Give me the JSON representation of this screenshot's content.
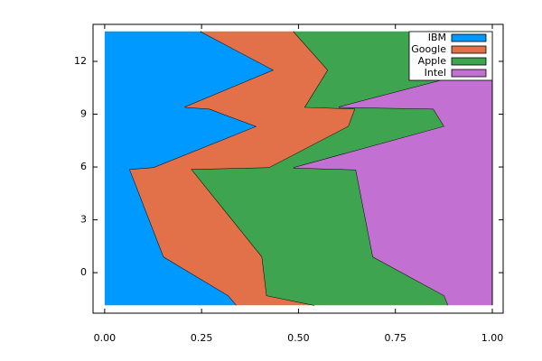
{
  "chart_data": {
    "type": "stacked-area",
    "orientation": "horizontal",
    "y": [
      13.7,
      11.5,
      9.4,
      9.3,
      8.3,
      5.95,
      5.85,
      0.9,
      -1.3,
      -1.85
    ],
    "series": [
      {
        "name": "IBM",
        "color": "#0099ff",
        "values": [
          0.247,
          0.436,
          0.207,
          0.27,
          0.392,
          0.126,
          0.065,
          0.152,
          0.319,
          0.34
        ]
      },
      {
        "name": "Google",
        "color": "#e2714a",
        "values": [
          0.24,
          0.14,
          0.31,
          0.376,
          0.237,
          0.298,
          0.16,
          0.254,
          0.099,
          0.201
        ]
      },
      {
        "name": "Apple",
        "color": "#3fa44f",
        "values": [
          0.513,
          0.394,
          0.087,
          0.202,
          0.247,
          0.063,
          0.423,
          0.286,
          0.458,
          0.345
        ]
      },
      {
        "name": "Intel",
        "color": "#c271d2",
        "values": [
          0,
          0.03,
          0.396,
          0.152,
          0.124,
          0.513,
          0.352,
          0.308,
          0.124,
          0.114
        ]
      }
    ],
    "xlim": [
      -0.03,
      1.028
    ],
    "ylim": [
      -2.3,
      14.1
    ],
    "xticks": [
      {
        "value": 0,
        "label": "0.00"
      },
      {
        "value": 0.25,
        "label": "0.25"
      },
      {
        "value": 0.5,
        "label": "0.50"
      },
      {
        "value": 0.75,
        "label": "0.75"
      },
      {
        "value": 1,
        "label": "1.00"
      }
    ],
    "yticks": [
      0,
      3,
      6,
      9,
      12
    ],
    "grid": false,
    "legend": "top-right"
  }
}
